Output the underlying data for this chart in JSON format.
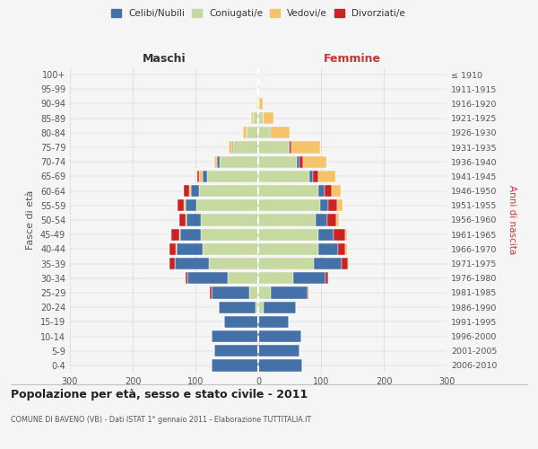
{
  "age_groups": [
    "0-4",
    "5-9",
    "10-14",
    "15-19",
    "20-24",
    "25-29",
    "30-34",
    "35-39",
    "40-44",
    "45-49",
    "50-54",
    "55-59",
    "60-64",
    "65-69",
    "70-74",
    "75-79",
    "80-84",
    "85-89",
    "90-94",
    "95-99",
    "100+"
  ],
  "birth_years": [
    "2006-2010",
    "2001-2005",
    "1996-2000",
    "1991-1995",
    "1986-1990",
    "1981-1985",
    "1976-1980",
    "1971-1975",
    "1966-1970",
    "1961-1965",
    "1956-1960",
    "1951-1955",
    "1946-1950",
    "1941-1945",
    "1936-1940",
    "1931-1935",
    "1926-1930",
    "1921-1925",
    "1916-1920",
    "1911-1915",
    "≤ 1910"
  ],
  "males": {
    "celibi": [
      75,
      70,
      75,
      55,
      58,
      60,
      65,
      55,
      42,
      32,
      22,
      18,
      12,
      7,
      4,
      2,
      1,
      1,
      0,
      0,
      0
    ],
    "coniugati": [
      0,
      0,
      0,
      0,
      5,
      15,
      48,
      78,
      88,
      92,
      92,
      98,
      95,
      82,
      62,
      40,
      18,
      8,
      2,
      1,
      0
    ],
    "vedovi": [
      0,
      0,
      0,
      0,
      0,
      0,
      0,
      0,
      1,
      2,
      2,
      3,
      3,
      5,
      4,
      5,
      5,
      3,
      1,
      0,
      0
    ],
    "divorziati": [
      0,
      0,
      0,
      0,
      0,
      2,
      3,
      8,
      10,
      12,
      10,
      10,
      8,
      3,
      0,
      0,
      0,
      0,
      0,
      0,
      0
    ]
  },
  "females": {
    "nubili": [
      70,
      65,
      68,
      48,
      52,
      58,
      52,
      45,
      32,
      25,
      18,
      14,
      10,
      5,
      4,
      2,
      2,
      1,
      0,
      0,
      0
    ],
    "coniugate": [
      0,
      0,
      0,
      0,
      8,
      20,
      55,
      88,
      95,
      95,
      92,
      98,
      95,
      82,
      62,
      48,
      18,
      8,
      2,
      0,
      0
    ],
    "vedove": [
      0,
      0,
      0,
      0,
      0,
      0,
      0,
      1,
      2,
      3,
      5,
      8,
      15,
      28,
      38,
      45,
      30,
      15,
      5,
      2,
      1
    ],
    "divorziate": [
      0,
      0,
      0,
      0,
      0,
      2,
      5,
      10,
      12,
      18,
      14,
      14,
      12,
      8,
      5,
      3,
      0,
      0,
      0,
      0,
      0
    ]
  },
  "colors": {
    "celibi": "#4472a8",
    "coniugati": "#c5d9a0",
    "vedovi": "#f5c46a",
    "divorziati": "#cc2222"
  },
  "xlim": 300,
  "title": "Popolazione per età, sesso e stato civile - 2011",
  "subtitle": "COMUNE DI BAVENO (VB) - Dati ISTAT 1° gennaio 2011 - Elaborazione TUTTITALIA.IT",
  "ylabel_left": "Fasce di età",
  "ylabel_right": "Anni di nascita",
  "xlabel_left": "Maschi",
  "xlabel_right": "Femmine",
  "bg_color": "#f5f5f5",
  "grid_color": "#cccccc"
}
